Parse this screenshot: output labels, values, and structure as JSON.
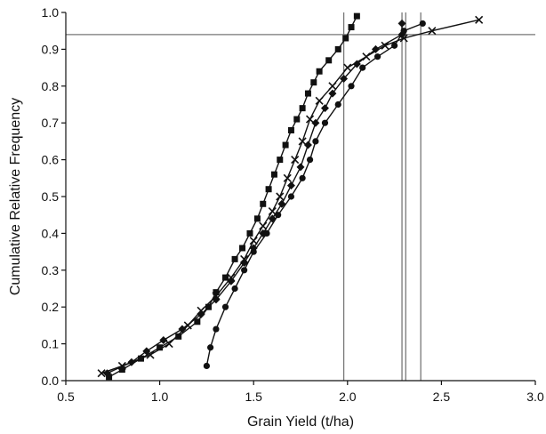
{
  "chart_data": {
    "type": "line",
    "title": "",
    "xlabel": "Grain Yield (t/ha)",
    "ylabel": "Cumulative Relative Frequency",
    "xlim": [
      0.5,
      3.0
    ],
    "ylim": [
      0.0,
      1.0
    ],
    "x_ticks": [
      0.5,
      1.0,
      1.5,
      2.0,
      2.5,
      3.0
    ],
    "x_tick_labels": [
      "0.5",
      "1.0",
      "1.5",
      "2.0",
      "2.5",
      "3.0"
    ],
    "y_ticks": [
      0.0,
      0.1,
      0.2,
      0.3,
      0.4,
      0.5,
      0.6,
      0.7,
      0.8,
      0.9,
      1.0
    ],
    "y_tick_labels": [
      "0.0",
      "0.1",
      "0.2",
      "0.3",
      "0.4",
      "0.5",
      "0.6",
      "0.7",
      "0.8",
      "0.9",
      "1.0"
    ],
    "grid": false,
    "legend": "none",
    "reference_lines": {
      "horizontal": [
        0.94
      ],
      "vertical": [
        1.98,
        2.29,
        2.31,
        2.39
      ]
    },
    "series": [
      {
        "marker": "square",
        "color": "#111111",
        "points": [
          [
            0.73,
            0.01
          ],
          [
            0.8,
            0.03
          ],
          [
            0.9,
            0.06
          ],
          [
            1.0,
            0.09
          ],
          [
            1.1,
            0.12
          ],
          [
            1.2,
            0.16
          ],
          [
            1.26,
            0.2
          ],
          [
            1.3,
            0.24
          ],
          [
            1.35,
            0.28
          ],
          [
            1.4,
            0.33
          ],
          [
            1.44,
            0.36
          ],
          [
            1.48,
            0.4
          ],
          [
            1.52,
            0.44
          ],
          [
            1.55,
            0.48
          ],
          [
            1.58,
            0.52
          ],
          [
            1.61,
            0.56
          ],
          [
            1.64,
            0.6
          ],
          [
            1.67,
            0.64
          ],
          [
            1.7,
            0.68
          ],
          [
            1.73,
            0.71
          ],
          [
            1.76,
            0.74
          ],
          [
            1.79,
            0.78
          ],
          [
            1.82,
            0.81
          ],
          [
            1.85,
            0.84
          ],
          [
            1.9,
            0.87
          ],
          [
            1.95,
            0.9
          ],
          [
            1.99,
            0.93
          ],
          [
            2.02,
            0.96
          ],
          [
            2.05,
            0.99
          ]
        ]
      },
      {
        "marker": "diamond",
        "color": "#111111",
        "points": [
          [
            0.72,
            0.02
          ],
          [
            0.85,
            0.05
          ],
          [
            0.93,
            0.08
          ],
          [
            1.02,
            0.11
          ],
          [
            1.12,
            0.14
          ],
          [
            1.22,
            0.18
          ],
          [
            1.3,
            0.22
          ],
          [
            1.38,
            0.27
          ],
          [
            1.45,
            0.32
          ],
          [
            1.5,
            0.36
          ],
          [
            1.55,
            0.4
          ],
          [
            1.6,
            0.44
          ],
          [
            1.65,
            0.48
          ],
          [
            1.7,
            0.53
          ],
          [
            1.75,
            0.58
          ],
          [
            1.79,
            0.64
          ],
          [
            1.83,
            0.7
          ],
          [
            1.88,
            0.74
          ],
          [
            1.92,
            0.78
          ],
          [
            1.98,
            0.82
          ],
          [
            2.05,
            0.86
          ],
          [
            2.15,
            0.9
          ],
          [
            2.29,
            0.94
          ],
          [
            2.29,
            0.97
          ]
        ]
      },
      {
        "marker": "x",
        "color": "#111111",
        "points": [
          [
            0.69,
            0.02
          ],
          [
            0.8,
            0.04
          ],
          [
            0.95,
            0.07
          ],
          [
            1.05,
            0.1
          ],
          [
            1.15,
            0.15
          ],
          [
            1.22,
            0.19
          ],
          [
            1.3,
            0.23
          ],
          [
            1.38,
            0.28
          ],
          [
            1.45,
            0.33
          ],
          [
            1.5,
            0.38
          ],
          [
            1.55,
            0.42
          ],
          [
            1.6,
            0.46
          ],
          [
            1.64,
            0.5
          ],
          [
            1.68,
            0.55
          ],
          [
            1.72,
            0.6
          ],
          [
            1.76,
            0.65
          ],
          [
            1.8,
            0.71
          ],
          [
            1.85,
            0.76
          ],
          [
            1.92,
            0.8
          ],
          [
            2.0,
            0.85
          ],
          [
            2.1,
            0.88
          ],
          [
            2.2,
            0.91
          ],
          [
            2.3,
            0.93
          ],
          [
            2.45,
            0.95
          ],
          [
            2.7,
            0.98
          ]
        ]
      },
      {
        "marker": "circle",
        "color": "#111111",
        "points": [
          [
            1.25,
            0.04
          ],
          [
            1.27,
            0.09
          ],
          [
            1.3,
            0.14
          ],
          [
            1.35,
            0.2
          ],
          [
            1.4,
            0.25
          ],
          [
            1.45,
            0.3
          ],
          [
            1.5,
            0.35
          ],
          [
            1.57,
            0.4
          ],
          [
            1.63,
            0.45
          ],
          [
            1.7,
            0.5
          ],
          [
            1.76,
            0.55
          ],
          [
            1.8,
            0.6
          ],
          [
            1.83,
            0.65
          ],
          [
            1.88,
            0.7
          ],
          [
            1.95,
            0.75
          ],
          [
            2.02,
            0.8
          ],
          [
            2.08,
            0.85
          ],
          [
            2.16,
            0.88
          ],
          [
            2.25,
            0.91
          ],
          [
            2.3,
            0.95
          ],
          [
            2.4,
            0.97
          ]
        ]
      }
    ]
  }
}
